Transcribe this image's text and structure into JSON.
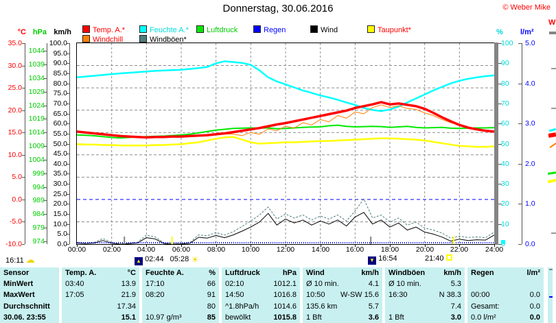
{
  "header": {
    "title": "Donnerstag, 30.06.2016",
    "copyright": "© Weber Mike"
  },
  "legend": {
    "items": [
      {
        "label": "Temp. A.*",
        "swatch": "#ff0000",
        "text_color": "#ff0000"
      },
      {
        "label": "Windchill",
        "swatch": "#ff8000",
        "text_color": "#ff0000"
      },
      {
        "label": "Feuchte A.*",
        "swatch": "#00ffff",
        "text_color": "#00dcdc"
      },
      {
        "label": "Windböen*",
        "swatch": "#4d7d7d",
        "text_color": "#000000"
      },
      {
        "label": "Luftdruck",
        "swatch": "#00e800",
        "text_color": "#00cc00"
      },
      {
        "label": "Regen",
        "swatch": "#0000ff",
        "text_color": "#0000ff"
      },
      {
        "label": "Wind",
        "swatch": "#000000",
        "text_color": "#000000"
      },
      {
        "label": "Taupunkt*",
        "swatch": "#ffff00",
        "text_color": "#ff0000"
      }
    ]
  },
  "axes": {
    "temp": {
      "name": "°C",
      "color": "#ff0000",
      "tick_labels": [
        "35.0",
        "30.0",
        "25.0",
        "20.0",
        "15.0",
        "10.0",
        "5.0",
        "0.0",
        "-5.0",
        "-10.0"
      ]
    },
    "pressure": {
      "name": "hPa",
      "color": "#00cc00",
      "tick_labels": [
        "1044",
        "1039",
        "1034",
        "1029",
        "1024",
        "1019",
        "1014",
        "1009",
        "1004",
        "999",
        "994",
        "989",
        "984",
        "979",
        "974"
      ]
    },
    "wind": {
      "name": "km/h",
      "color": "#000000",
      "tick_labels": [
        "100.0",
        "95.0",
        "90.0",
        "85.0",
        "80.0",
        "75.0",
        "70.0",
        "65.0",
        "60.0",
        "55.0",
        "50.0",
        "45.0",
        "40.0",
        "35.0",
        "30.0",
        "25.0",
        "20.0",
        "15.0",
        "10.0",
        "5.0",
        "0.0"
      ]
    },
    "humidity": {
      "name": "%",
      "color": "#00d8d8",
      "tick_labels": [
        "100",
        "90",
        "80",
        "70",
        "60",
        "50",
        "40",
        "30",
        "20",
        "10",
        "0"
      ]
    },
    "rain": {
      "name": "l/m²",
      "color": "#0000ff",
      "tick_labels": [
        "5.0",
        "4.0",
        "3.0",
        "2.0",
        "1.0",
        "0.0"
      ]
    },
    "time": {
      "tick_labels": [
        "00:00",
        "02:00",
        "04:00",
        "06:00",
        "08:00",
        "10:00",
        "12:00",
        "14:00",
        "16:00",
        "18:00",
        "20:00",
        "22:00",
        "24:00"
      ]
    }
  },
  "events": {
    "moonrise": "02:44",
    "sunrise": "05:28",
    "moonset": "16:54",
    "sunset": "21:40",
    "sunshine_duration": "16:11"
  },
  "right_edge": {
    "label": "W"
  },
  "chart_data": {
    "type": "line",
    "title": "Donnerstag, 30.06.2016",
    "x_start": 0,
    "x_end": 24,
    "x_unit": "hours",
    "axes_ranges": {
      "temp_c": [
        -10,
        35
      ],
      "humidity_pct": [
        0,
        100
      ],
      "wind_kmh": [
        0,
        100
      ],
      "pressure_hpa": [
        973,
        1047
      ],
      "rain_lm2": [
        0,
        5
      ]
    },
    "grid": {
      "v_hours": [
        2,
        4,
        6,
        8,
        10,
        12,
        14,
        16,
        18,
        20,
        22
      ],
      "h_temp_gray": [
        30,
        25,
        20,
        15,
        10,
        5,
        -5
      ],
      "h_temp_blue": [
        0
      ]
    },
    "series": [
      {
        "name": "Feuchte A.",
        "axis": "humidity_pct",
        "color": "#00ffff",
        "width": 2.5,
        "values": [
          83,
          83.4,
          83.8,
          84.2,
          84.6,
          85,
          85.3,
          85.6,
          85.9,
          86.2,
          86.4,
          86.6,
          86.8,
          87.2,
          87.6,
          88.2,
          90,
          91,
          90.6,
          90.2,
          89.2,
          86.5,
          83,
          81,
          79.5,
          78,
          76.5,
          75.3,
          74,
          73,
          71.8,
          70.5,
          69.3,
          67.8,
          66.8,
          66.2,
          67,
          68.5,
          70.5,
          72.5,
          74.5,
          76.5,
          78.3,
          80,
          81.3,
          82.3,
          83,
          83.6,
          84
        ]
      },
      {
        "name": "Luftdruck",
        "axis": "pressure_hpa",
        "color": "#00e800",
        "width": 2,
        "values": [
          1013.2,
          1013.1,
          1012.9,
          1012.6,
          1012.3,
          1012.1,
          1012.3,
          1012.5,
          1012.6,
          1012.7,
          1012.8,
          1013.0,
          1013.2,
          1013.5,
          1014.0,
          1014.5,
          1015.0,
          1015.3,
          1015.6,
          1015.7,
          1015.8,
          1015.7,
          1015.8,
          1015.5,
          1015.6,
          1015.8,
          1016.0,
          1016.1,
          1016.2,
          1016.6,
          1016.8,
          1016.4,
          1016.2,
          1016.3,
          1016.4,
          1016.3,
          1016.0,
          1016.2,
          1016.4,
          1016.0,
          1015.8,
          1015.9,
          1016.0,
          1015.7,
          1015.6,
          1015.7,
          1015.8,
          1015.8,
          1015.9
        ]
      },
      {
        "name": "Taupunkt",
        "axis": "temp_c",
        "color": "#ffff00",
        "width": 2.5,
        "values": [
          12.4,
          12.3,
          12.3,
          12.2,
          12.2,
          12.1,
          12.1,
          12.1,
          12.1,
          12.2,
          12.2,
          12.3,
          12.4,
          12.6,
          12.8,
          13.2,
          13.6,
          13.9,
          14.0,
          13.4,
          12.8,
          12.5,
          12.6,
          12.7,
          12.8,
          12.8,
          12.9,
          13.0,
          13.1,
          13.1,
          13.2,
          13.3,
          13.4,
          13.5,
          13.6,
          13.7,
          13.7,
          13.6,
          13.5,
          13.4,
          13.2,
          12.9,
          12.6,
          12.3,
          12.0,
          11.9,
          11.8,
          11.8,
          11.9
        ]
      },
      {
        "name": "Windböen",
        "axis": "wind_kmh",
        "color": "#4d7d7d",
        "width": 1,
        "dash": "3,2",
        "values": [
          0.8,
          0.5,
          0.8,
          2.8,
          0.8,
          0,
          0.4,
          1.0,
          4.5,
          3.6,
          0.6,
          0,
          0.3,
          0.8,
          4.6,
          4.2,
          5.8,
          4.5,
          6.2,
          8.8,
          11.5,
          14.5,
          18.5,
          12.5,
          15.0,
          13.0,
          14.5,
          12.0,
          14.0,
          12.5,
          14.5,
          11.5,
          16.5,
          22.5,
          13.0,
          14.5,
          11.0,
          13.0,
          9.5,
          11.0,
          8.0,
          7.0,
          5.5,
          3.0,
          4.0,
          3.3,
          3.6,
          3.2,
          6.0
        ]
      },
      {
        "name": "Wind",
        "axis": "wind_kmh",
        "color": "#000000",
        "width": 1,
        "values": [
          0.5,
          0.3,
          0.5,
          1.8,
          0.4,
          0,
          0.2,
          0.6,
          3.2,
          2.6,
          0.3,
          0,
          0.1,
          0.4,
          3.4,
          3.0,
          4.3,
          3.2,
          4.6,
          6.5,
          8.5,
          11.0,
          15.3,
          9.5,
          12.5,
          10.5,
          12.0,
          9.5,
          11.5,
          10.0,
          12.0,
          9.0,
          13.5,
          15.8,
          10.0,
          12.0,
          8.5,
          10.5,
          7.0,
          8.5,
          6.0,
          5.0,
          3.5,
          1.5,
          2.5,
          1.8,
          2.2,
          2.0,
          4.5
        ]
      },
      {
        "name": "Windchill",
        "axis": "temp_c",
        "color": "#ff8000",
        "width": 1,
        "values": [
          15.2,
          15.0,
          14.8,
          14.6,
          14.4,
          14.2,
          14.1,
          14.0,
          13.9,
          14.0,
          14.0,
          14.1,
          14.1,
          14.2,
          14.3,
          14.4,
          14.5,
          14.7,
          14.6,
          14.3,
          15.0,
          14.6,
          15.8,
          15.4,
          16.4,
          16.0,
          17.2,
          16.7,
          17.9,
          17.4,
          18.8,
          18.2,
          19.6,
          19.2,
          20.6,
          21.2,
          20.6,
          21.0,
          20.4,
          20.2,
          19.4,
          18.8,
          17.9,
          17.2,
          16.6,
          16.1,
          15.7,
          15.4,
          15.2
        ]
      },
      {
        "name": "Regen",
        "axis": "rain_lm2",
        "color": "#0000ff",
        "width": 2,
        "dash": "1,2",
        "y_offset": -2,
        "values": [
          0,
          0
        ]
      },
      {
        "name": "Temp. A.",
        "axis": "temp_c",
        "color": "#ff0000",
        "width": 3.5,
        "values": [
          15.2,
          15.0,
          14.8,
          14.6,
          14.4,
          14.2,
          14.1,
          14.0,
          13.9,
          14.0,
          14.0,
          14.1,
          14.1,
          14.2,
          14.3,
          14.4,
          14.6,
          14.8,
          15.1,
          15.4,
          15.7,
          16.0,
          16.4,
          16.8,
          17.1,
          17.5,
          17.9,
          18.3,
          18.7,
          19.1,
          19.5,
          19.9,
          20.5,
          20.9,
          21.3,
          21.8,
          21.3,
          21.5,
          21.2,
          20.9,
          20.3,
          19.4,
          18.4,
          17.5,
          16.7,
          16.1,
          15.7,
          15.4,
          15.2
        ]
      }
    ]
  },
  "table": {
    "row_labels": [
      "Sensor",
      "MinWert",
      "MaxWert",
      "Durchschnitt",
      "30.06. 23:55"
    ],
    "groups": [
      {
        "header": "Temp. A.",
        "unit": "°C",
        "rows": [
          [
            "03:40",
            "13.9"
          ],
          [
            "17:05",
            "21.9"
          ],
          [
            "",
            "17.34"
          ],
          [
            "",
            "15.1"
          ]
        ]
      },
      {
        "header": "Feuchte A.",
        "unit": "%",
        "rows": [
          [
            "17:10",
            "66"
          ],
          [
            "08:20",
            "91"
          ],
          [
            "",
            "80"
          ],
          [
            "10.97 g/m³",
            "85"
          ]
        ]
      },
      {
        "header": "Luftdruck",
        "unit": "hPa",
        "rows": [
          [
            "02:10",
            "1012.1"
          ],
          [
            "14:50",
            "1016.8"
          ],
          [
            "^1.8hPa/h",
            "1014.6"
          ],
          [
            "bewölkt",
            "1015.8"
          ]
        ]
      },
      {
        "header": "Wind",
        "unit": "km/h",
        "rows": [
          [
            "Ø 10 min.",
            "4.1"
          ],
          [
            "10:50",
            "W-SW 15.6"
          ],
          [
            "135.6 km",
            "5.7"
          ],
          [
            "1 Bft",
            "3.6"
          ]
        ]
      },
      {
        "header": "Windböen",
        "unit": "km/h",
        "rows": [
          [
            "Ø 10 min.",
            "5.3"
          ],
          [
            "16:30",
            "N 38.3"
          ],
          [
            "",
            "7.4"
          ],
          [
            "1 Bft",
            "3.0"
          ]
        ]
      },
      {
        "header": "Regen",
        "unit": "l/m²",
        "rows": [
          [
            "",
            ""
          ],
          [
            "00:00",
            "0.0"
          ],
          [
            "Gesamt:",
            "0.0"
          ],
          [
            "0.0 l/m²",
            "0.0"
          ]
        ]
      }
    ]
  }
}
